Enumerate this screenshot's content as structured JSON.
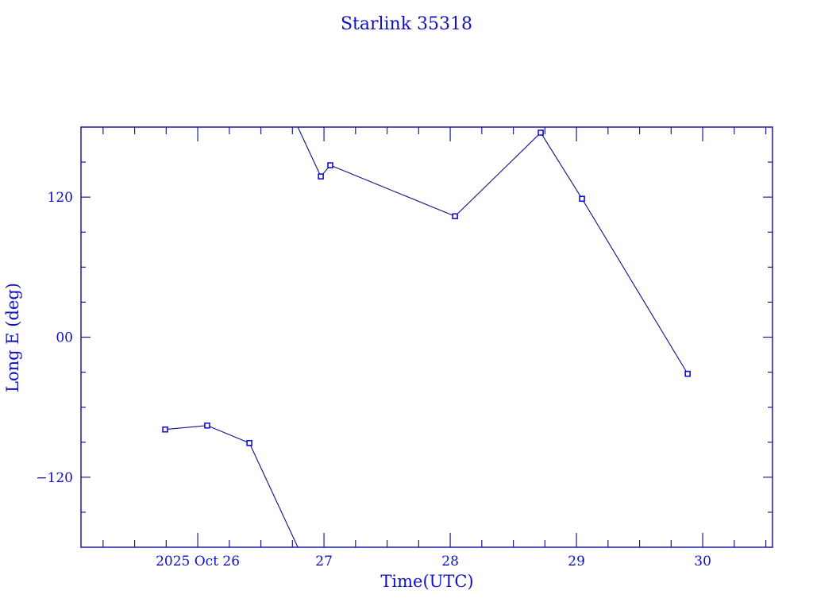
{
  "chart_data": {
    "type": "line",
    "title": "Starlink 35318",
    "xlabel": "Time(UTC)",
    "ylabel": "Long E (deg)",
    "xlim": [
      25.075,
      30.553
    ],
    "ylim": [
      -180,
      180
    ],
    "x_ticks": [
      {
        "value": 26,
        "label": "2025 Oct 26"
      },
      {
        "value": 27,
        "label": "27"
      },
      {
        "value": 28,
        "label": "28"
      },
      {
        "value": 29,
        "label": "29"
      },
      {
        "value": 30,
        "label": "30"
      }
    ],
    "y_ticks": [
      {
        "value": 120,
        "label": "120"
      },
      {
        "value": 0,
        "label": "00"
      },
      {
        "value": -120,
        "label": "−120"
      }
    ],
    "x_minor_step": 0.25,
    "y_minor_step": 30,
    "grid": false,
    "wrap_longitude": true,
    "series": [
      {
        "name": "Long E",
        "x": [
          25.742,
          26.075,
          26.409,
          26.975,
          27.05,
          28.038,
          28.717,
          29.044,
          29.881
        ],
        "y": [
          -79.1,
          -75.7,
          -90.7,
          137.7,
          147.3,
          103.6,
          175.2,
          118.6,
          -31.4
        ]
      }
    ],
    "colors": {
      "frame": "#1a1a9a",
      "line": "#101080",
      "marker": "#1010d0",
      "text": "#1010c0"
    }
  }
}
